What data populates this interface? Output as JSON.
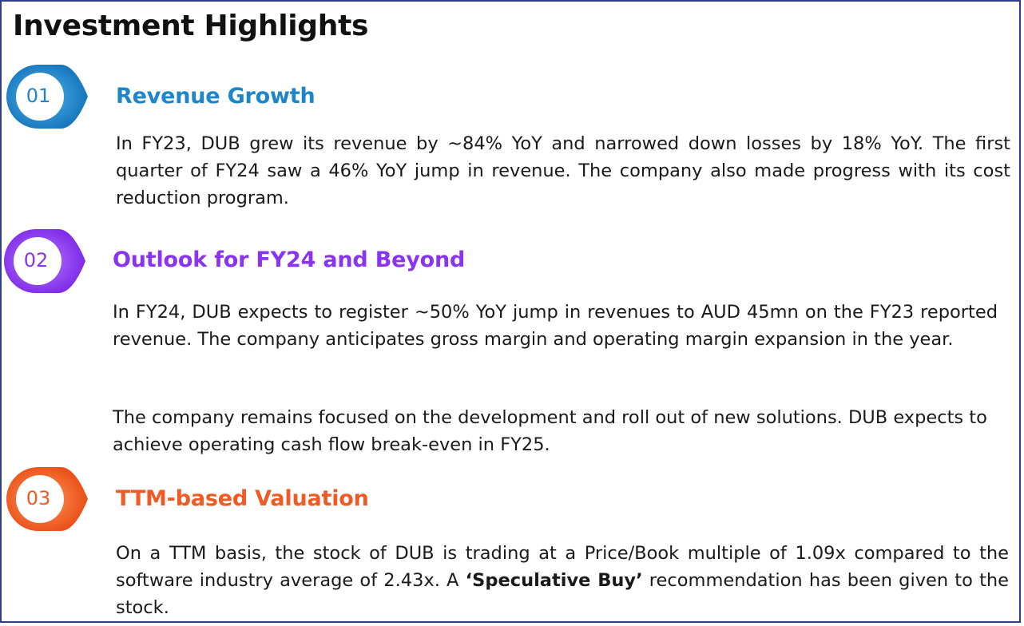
{
  "title": "Investment Highlights",
  "colors": {
    "blue": "#1e86c8",
    "purple": "#8a33f0",
    "orange": "#f05a24",
    "border": "#2f3e8c"
  },
  "sections": [
    {
      "number": "01",
      "heading": "Revenue Growth",
      "paragraphs": [
        "In FY23, DUB grew its revenue by ~84% YoY and narrowed down losses by 18% YoY. The first quarter of FY24 saw a 46% YoY jump in revenue. The company also made progress with its cost reduction program."
      ]
    },
    {
      "number": "02",
      "heading": "Outlook for FY24 and Beyond",
      "paragraphs": [
        "In FY24, DUB expects to register ~50% YoY jump in revenues to AUD 45mn on the FY23 reported revenue. The company anticipates gross margin and operating margin expansion in the year.",
        "The company remains focused on the development and roll out of new solutions. DUB expects to achieve operating cash flow break-even in FY25."
      ]
    },
    {
      "number": "03",
      "heading": "TTM-based Valuation",
      "paragraphs": [
        {
          "before": "On a TTM basis, the stock of DUB is trading at a Price/Book multiple of 1.09x compared to the software industry average of 2.43x. A ",
          "emphasis": "‘Speculative Buy’",
          "after": " recommendation has been given to the stock."
        }
      ]
    }
  ]
}
